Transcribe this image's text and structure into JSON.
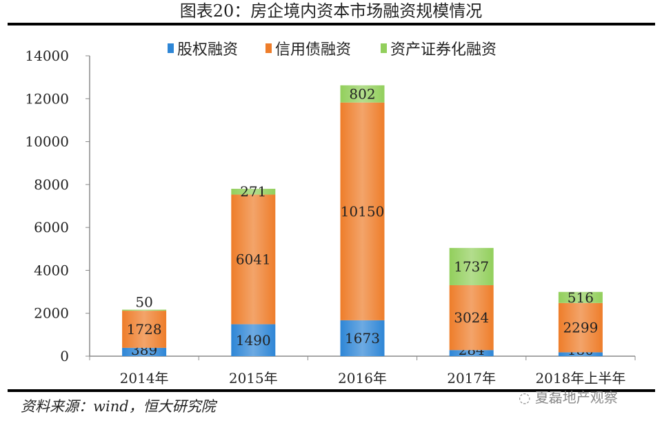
{
  "chart_data": {
    "type": "bar",
    "stacked": true,
    "title": "图表20：房企境内资本市场融资规模情况",
    "categories": [
      "2014年",
      "2015年",
      "2016年",
      "2017年",
      "2018年上半年"
    ],
    "series": [
      {
        "name": "股权融资",
        "color": "#2e86d6",
        "values": [
          389,
          1490,
          1673,
          284,
          180
        ]
      },
      {
        "name": "信用债融资",
        "color": "#ee7d2a",
        "values": [
          1728,
          6041,
          10150,
          3024,
          2299
        ]
      },
      {
        "name": "资产证券化融资",
        "color": "#92cf5c",
        "values": [
          50,
          271,
          802,
          1737,
          516
        ]
      }
    ],
    "ylim": [
      0,
      14000
    ],
    "yticks": [
      0,
      2000,
      4000,
      6000,
      8000,
      10000,
      12000,
      14000
    ],
    "legend": "top-center",
    "xlabel": "",
    "ylabel": ""
  },
  "source": "资料来源：wind，恒大研究院",
  "watermark": "夏磊地产观察"
}
